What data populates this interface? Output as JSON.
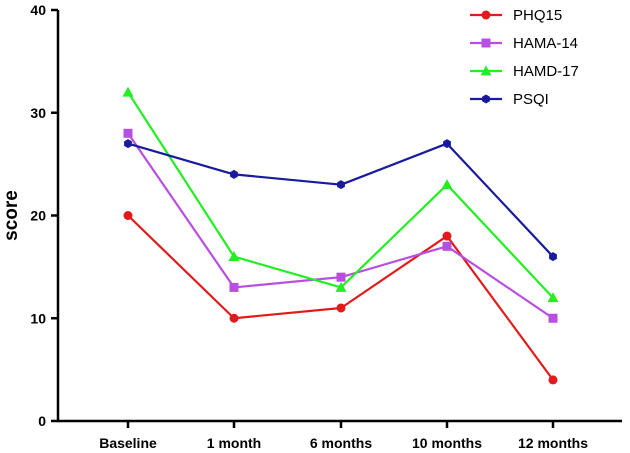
{
  "chart_data": {
    "type": "line",
    "title": "",
    "xlabel": "",
    "ylabel": "score",
    "ylim": [
      0,
      40
    ],
    "yticks": [
      "0",
      "10",
      "20",
      "30",
      "40"
    ],
    "categories": [
      "Baseline",
      "1 month",
      "6 months",
      "10 months",
      "12 months"
    ],
    "grid": false,
    "legend_position": "top-right",
    "series": [
      {
        "name": "PHQ15",
        "color": "#e31a1c",
        "marker": "circle",
        "values": [
          20,
          10,
          11,
          18,
          4
        ]
      },
      {
        "name": "HAMA-14",
        "color": "#b94fe0",
        "marker": "square",
        "values": [
          28,
          13,
          14,
          17,
          10
        ]
      },
      {
        "name": "HAMD-17",
        "color": "#22ee22",
        "marker": "triangle",
        "values": [
          32,
          16,
          13,
          23,
          12
        ]
      },
      {
        "name": "PSQI",
        "color": "#1a1a9c",
        "marker": "hexagon",
        "values": [
          27,
          24,
          23,
          27,
          16
        ]
      }
    ]
  }
}
